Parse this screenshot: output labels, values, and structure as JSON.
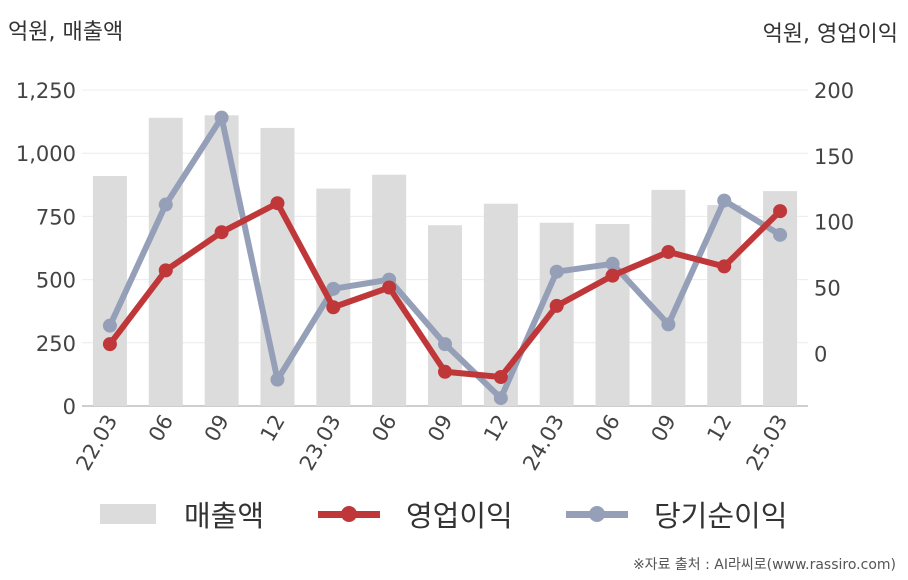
{
  "units": {
    "left": "억원, 매출액",
    "right": "억원, 영업이익"
  },
  "source": "※자료 출처 : AI라씨로(www.rassiro.com)",
  "colors": {
    "revenue": "#dcdcdc",
    "operating_profit": "#c0373a",
    "net_profit": "#95a0b8"
  },
  "chart_data": {
    "type": "bar",
    "categories": [
      "22.03",
      "06",
      "09",
      "12",
      "23.03",
      "06",
      "09",
      "12",
      "24.03",
      "06",
      "09",
      "12",
      "25.03"
    ],
    "left_axis": {
      "ylim": [
        0,
        1250
      ],
      "ticks": [
        "0",
        "250",
        "500",
        "750",
        "1,000",
        "1,250"
      ],
      "tick_values": [
        0,
        250,
        500,
        750,
        1000,
        1250
      ]
    },
    "right_axis": {
      "ylim": [
        -40,
        200
      ],
      "ticks": [
        "0",
        "50",
        "100",
        "150",
        "200"
      ],
      "tick_values": [
        0,
        50,
        100,
        150,
        200
      ]
    },
    "series": [
      {
        "name": "매출액",
        "type": "bar",
        "axis": "left",
        "values": [
          910,
          1140,
          1150,
          1100,
          860,
          915,
          715,
          800,
          725,
          720,
          855,
          795,
          850
        ]
      },
      {
        "name": "영업이익",
        "type": "line",
        "axis": "right",
        "values": [
          7,
          63,
          92,
          114,
          35,
          50,
          -14,
          -18,
          36,
          59,
          77,
          66,
          108
        ]
      },
      {
        "name": "당기순이익",
        "type": "line",
        "axis": "right",
        "values": [
          21,
          113,
          179,
          -20,
          49,
          56,
          7,
          -34,
          62,
          68,
          22,
          116,
          90
        ]
      }
    ],
    "legend": "bottom",
    "grid": true
  }
}
